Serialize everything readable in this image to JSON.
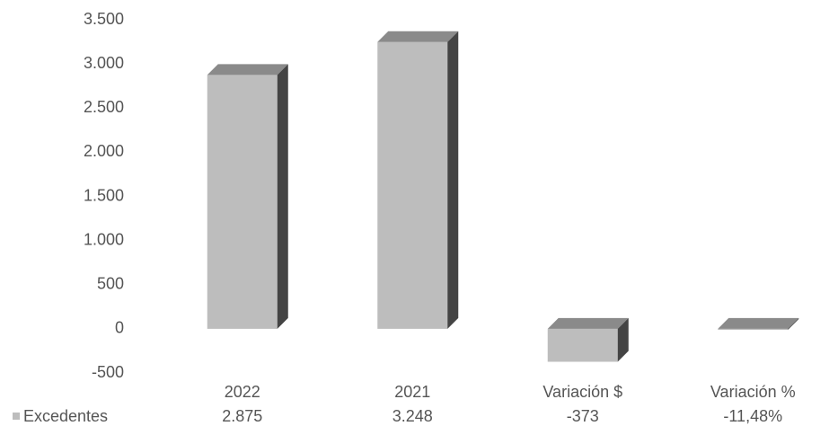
{
  "chart_data": {
    "type": "bar",
    "categories": [
      "2022",
      "2021",
      "Variación $",
      "Variación %"
    ],
    "series": [
      {
        "name": "Excedentes",
        "color": "#bdbdbd",
        "values": [
          2875,
          3248,
          -373,
          -11.48
        ],
        "value_labels": [
          "2.875",
          "3.248",
          "-373",
          "-11,48%"
        ]
      }
    ],
    "ylim": [
      -500,
      3500
    ],
    "yticks": [
      -500,
      0,
      500,
      {
        "value": 1000,
        "label": "1.000"
      },
      {
        "value": 1500,
        "label": "1.500"
      },
      {
        "value": 2000,
        "label": "2.000"
      },
      {
        "value": 2500,
        "label": "2.500"
      },
      {
        "value": 3000,
        "label": "3.000"
      },
      {
        "value": 3500,
        "label": "3.500"
      }
    ]
  }
}
